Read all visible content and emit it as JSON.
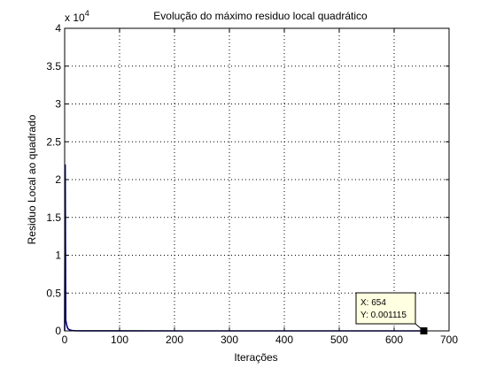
{
  "chart_data": {
    "type": "line",
    "title": "Evolução do máximo residuo local quadrático",
    "xlabel": "Iterações",
    "ylabel": "Residuo Local ao quadrado",
    "y_exponent_label": "x 10",
    "y_exponent_power": "4",
    "xlim": [
      0,
      700
    ],
    "ylim": [
      0,
      40000
    ],
    "grid": true,
    "x_ticks": [
      0,
      100,
      200,
      300,
      400,
      500,
      600,
      700
    ],
    "x_tick_labels": [
      "0",
      "100",
      "200",
      "300",
      "400",
      "500",
      "600",
      "700"
    ],
    "y_ticks": [
      0,
      5000,
      10000,
      15000,
      20000,
      25000,
      30000,
      35000,
      40000
    ],
    "y_tick_labels": [
      "0",
      "0.5",
      "1",
      "1.5",
      "2",
      "2.5",
      "3",
      "3.5",
      "4"
    ],
    "line_color": "#00007f",
    "series": [
      {
        "x": [
          1,
          2,
          3,
          4,
          5,
          6,
          8,
          10,
          13,
          16,
          20,
          30,
          50,
          100,
          200,
          300,
          400,
          500,
          600,
          654
        ],
        "y": [
          22000,
          1400,
          1000,
          700,
          450,
          300,
          180,
          110,
          60,
          35,
          20,
          10,
          5,
          2,
          0.5,
          0.1,
          0.03,
          0.01,
          0.003,
          0.001115
        ]
      }
    ],
    "datatip": {
      "x": 654,
      "y": 0.001115,
      "line1": "X: 654",
      "line2": "Y: 0.001115"
    }
  }
}
